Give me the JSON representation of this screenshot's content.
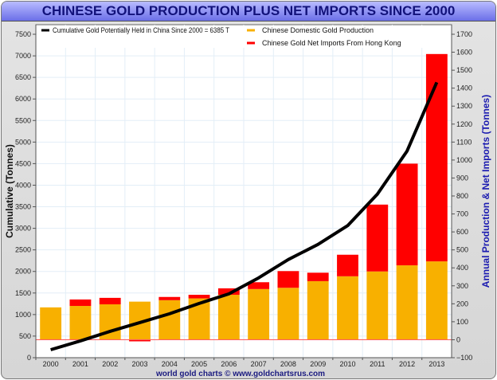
{
  "chart_data": {
    "type": "bar",
    "title": "CHINESE GOLD PRODUCTION PLUS NET IMPORTS SINCE 2000",
    "ylabel": "Cumulative (Tonnes)",
    "y2label": "Annual Production & Net Imports (Tonnes)",
    "footer": "world gold charts © www.goldchartsrus.com",
    "categories": [
      "2000",
      "2001",
      "2002",
      "2003",
      "2004",
      "2005",
      "2006",
      "2007",
      "2008",
      "2009",
      "2010",
      "2011",
      "2012",
      "2013"
    ],
    "ylim": [
      0,
      7500
    ],
    "yticks": [
      0,
      500,
      1000,
      1500,
      2000,
      2500,
      3000,
      3500,
      4000,
      4500,
      5000,
      5500,
      6000,
      6500,
      7000,
      7500
    ],
    "y2lim": [
      -100,
      1700
    ],
    "y2ticks": [
      -100,
      0,
      100,
      200,
      300,
      400,
      500,
      600,
      700,
      800,
      900,
      1000,
      1100,
      1200,
      1300,
      1400,
      1500,
      1600,
      1700
    ],
    "grid": true,
    "legend_placement": "top",
    "series": [
      {
        "name": "Chinese Domestic Gold Production",
        "type": "bar",
        "axis": "right",
        "color": "#f8b000",
        "values": [
          180,
          188,
          197,
          212,
          220,
          230,
          250,
          282,
          289,
          326,
          353,
          380,
          414,
          436
        ]
      },
      {
        "name": "Chinese Gold Net Imports From Hong Kong",
        "type": "stacked-bar",
        "axis": "right",
        "color": "#ff0000",
        "values": [
          0,
          36,
          36,
          -9,
          18,
          20,
          36,
          38,
          93,
          47,
          120,
          372,
          566,
          1154
        ]
      },
      {
        "name": "Cumulative Gold Potentially Held in China Since 2000 = 6385 T",
        "type": "line",
        "axis": "left",
        "color": "#000000",
        "values": [
          185,
          389,
          611,
          814,
          1018,
          1258,
          1480,
          1850,
          2276,
          2627,
          3063,
          3792,
          4792,
          6385
        ]
      }
    ],
    "zero_line_color": "#ff6060"
  }
}
